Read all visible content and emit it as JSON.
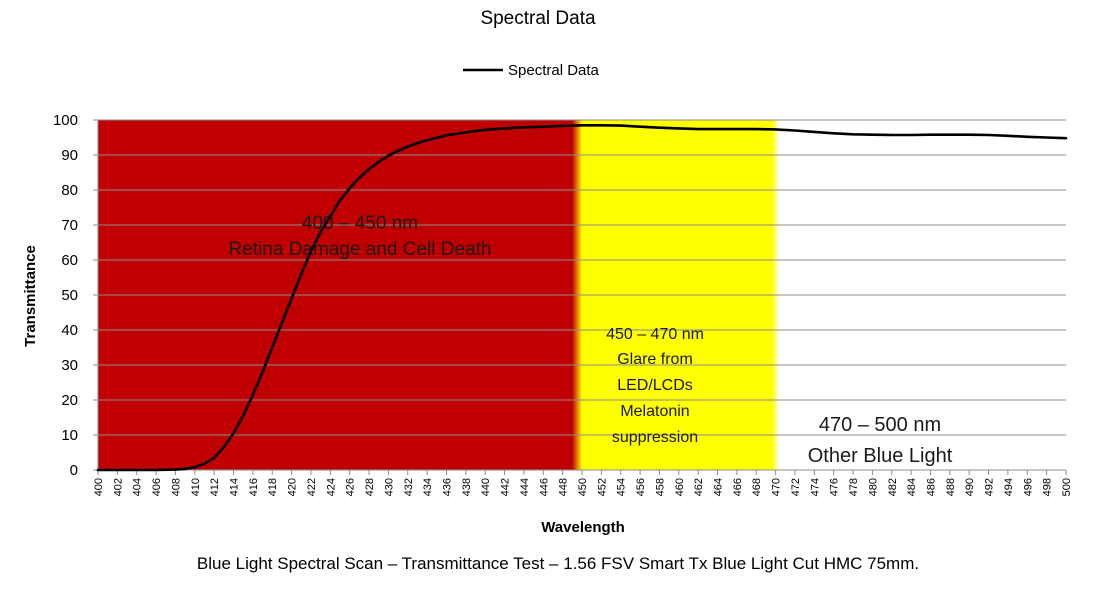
{
  "chart_data": {
    "type": "line",
    "title": "Spectral Data",
    "xlabel": "Wavelength",
    "ylabel": "Transmittance",
    "xlim": [
      400,
      500
    ],
    "ylim": [
      0,
      100
    ],
    "y_ticks": [
      0,
      10,
      20,
      30,
      40,
      50,
      60,
      70,
      80,
      90,
      100
    ],
    "x_ticks": [
      400,
      402,
      404,
      406,
      408,
      410,
      412,
      414,
      416,
      418,
      420,
      422,
      424,
      426,
      428,
      430,
      432,
      434,
      436,
      438,
      440,
      442,
      444,
      446,
      448,
      450,
      452,
      454,
      456,
      458,
      460,
      462,
      464,
      466,
      468,
      470,
      472,
      474,
      476,
      478,
      480,
      482,
      484,
      486,
      488,
      490,
      492,
      494,
      496,
      498,
      500
    ],
    "grid": true,
    "legend_position": "top-center",
    "series": [
      {
        "name": "Spectral Data",
        "color": "#000000",
        "x": [
          400,
          402,
          404,
          406,
          408,
          409,
          410,
          411,
          412,
          413,
          414,
          415,
          416,
          417,
          418,
          419,
          420,
          421,
          422,
          423,
          424,
          425,
          426,
          427,
          428,
          429,
          430,
          431,
          432,
          433,
          434,
          436,
          438,
          440,
          442,
          444,
          446,
          448,
          450,
          452,
          454,
          456,
          458,
          460,
          462,
          464,
          466,
          468,
          470,
          472,
          474,
          476,
          478,
          480,
          482,
          484,
          486,
          488,
          490,
          492,
          494,
          496,
          498,
          500
        ],
        "y": [
          0,
          0,
          0,
          0,
          0.1,
          0.3,
          0.8,
          1.8,
          3.5,
          6.5,
          10.5,
          15.5,
          21.5,
          28,
          35,
          42,
          49,
          56,
          62.5,
          68,
          72.5,
          77,
          80.5,
          83.5,
          86,
          88,
          89.8,
          91.2,
          92.4,
          93.4,
          94.2,
          95.6,
          96.5,
          97.2,
          97.6,
          97.9,
          98.1,
          98.3,
          98.5,
          98.5,
          98.4,
          98.1,
          97.8,
          97.6,
          97.4,
          97.4,
          97.4,
          97.4,
          97.3,
          97,
          96.6,
          96.2,
          95.9,
          95.8,
          95.7,
          95.7,
          95.8,
          95.8,
          95.8,
          95.7,
          95.5,
          95.2,
          95,
          94.8
        ]
      }
    ],
    "bands": [
      {
        "name": "retina-band",
        "from": 400,
        "to": 449.5,
        "color": "#c00000",
        "lines": [
          "400 – 450 nm",
          "Retina Damage and Cell Death"
        ]
      },
      {
        "name": "glare-band",
        "from": 449.5,
        "to": 470,
        "color": "#ffff00",
        "lines": [
          "450 – 470 nm",
          "Glare from",
          "LED/LCDs",
          "Melatonin",
          "suppression"
        ]
      },
      {
        "name": "other-band",
        "from": 470,
        "to": 500,
        "color": "#ffffff",
        "lines": [
          "470 – 500 nm",
          "Other Blue Light"
        ]
      }
    ],
    "caption": "Blue Light Spectral Scan – Transmittance Test – 1.56 FSV Smart Tx Blue Light Cut HMC 75mm."
  }
}
